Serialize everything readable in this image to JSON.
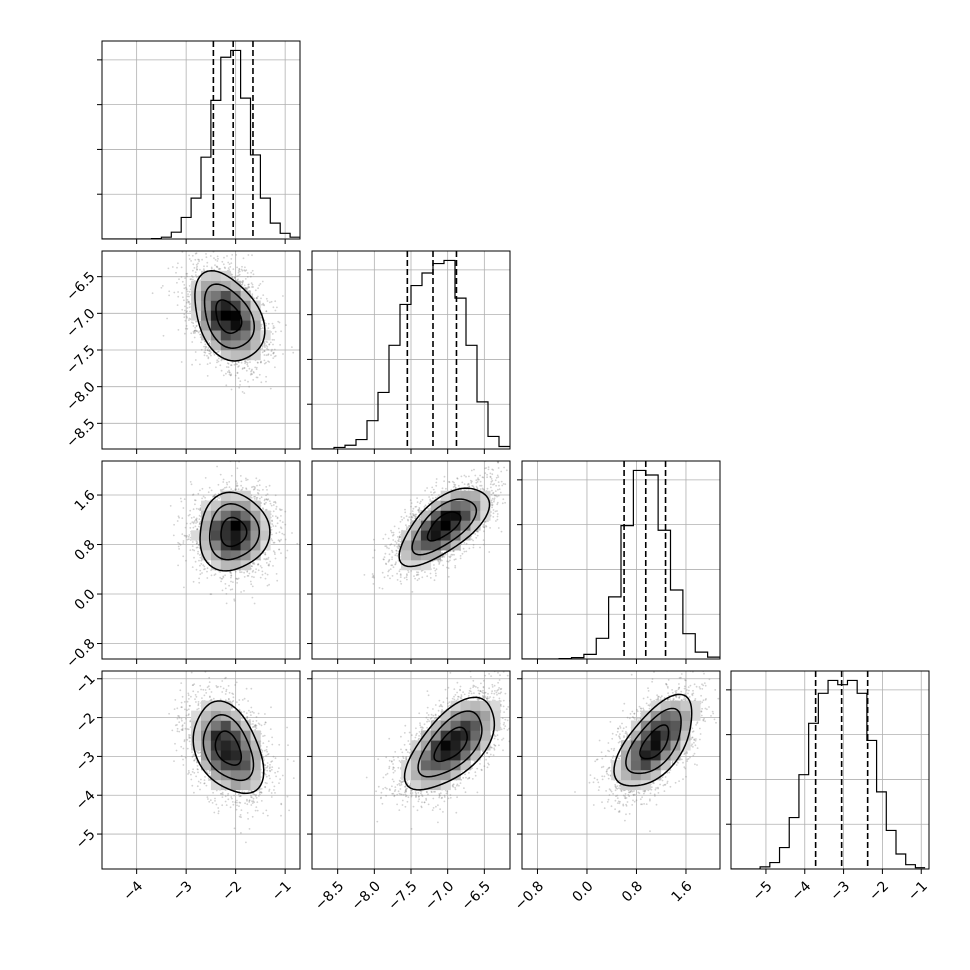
{
  "chart_data": {
    "type": "corner",
    "title": "",
    "n_params": 4,
    "grid": true,
    "colors": {
      "scatter": "#7f7f7f",
      "frame": "#000000",
      "grid": "#b0b0b0"
    },
    "params": [
      {
        "index": 0,
        "range": [
          -4.7,
          -0.7
        ],
        "ticks": [
          -4,
          -3,
          -2,
          -1
        ],
        "tick_labels": [
          "−4",
          "−3",
          "−2",
          "−1"
        ],
        "mean": -2.05,
        "sd": 0.37,
        "quantiles": [
          -2.45,
          -2.05,
          -1.65
        ],
        "hist": {
          "bin_edges": [
            -4.7,
            -4.5,
            -4.3,
            -4.1,
            -3.9,
            -3.7,
            -3.5,
            -3.3,
            -3.1,
            -2.9,
            -2.7,
            -2.5,
            -2.3,
            -2.1,
            -1.9,
            -1.7,
            -1.5,
            -1.3,
            -1.1,
            -0.9,
            -0.7
          ],
          "counts": [
            0,
            0,
            0,
            0,
            0,
            2,
            8,
            30,
            95,
            180,
            360,
            610,
            800,
            830,
            620,
            370,
            180,
            70,
            25,
            8
          ]
        }
      },
      {
        "index": 1,
        "range": [
          -8.85,
          -6.15
        ],
        "ticks": [
          -8.5,
          -8.0,
          -7.5,
          -7.0,
          -6.5
        ],
        "tick_labels": [
          "−8.5",
          "−8.0",
          "−7.5",
          "−7.0",
          "−6.5"
        ],
        "mean": -7.2,
        "sd": 0.32,
        "quantiles": [
          -7.55,
          -7.2,
          -6.88
        ],
        "hist": {
          "bin_edges": [
            -8.85,
            -8.7,
            -8.55,
            -8.4,
            -8.25,
            -8.1,
            -7.95,
            -7.8,
            -7.65,
            -7.5,
            -7.35,
            -7.2,
            -7.05,
            -6.9,
            -6.75,
            -6.6,
            -6.45,
            -6.3,
            -6.15
          ],
          "counts": [
            0,
            0,
            5,
            12,
            30,
            90,
            180,
            330,
            460,
            520,
            560,
            590,
            600,
            480,
            330,
            150,
            40,
            8
          ]
        }
      },
      {
        "index": 2,
        "range": [
          -1.05,
          2.15
        ],
        "ticks": [
          -0.8,
          0.0,
          0.8,
          1.6
        ],
        "tick_labels": [
          "−0.8",
          "0.0",
          "0.8",
          "1.6"
        ],
        "mean": 0.95,
        "sd": 0.33,
        "quantiles": [
          0.6,
          0.95,
          1.27
        ],
        "hist": {
          "bin_edges": [
            -1.05,
            -0.85,
            -0.65,
            -0.45,
            -0.25,
            -0.05,
            0.15,
            0.35,
            0.55,
            0.75,
            0.95,
            1.15,
            1.35,
            1.55,
            1.75,
            1.95,
            2.15
          ],
          "counts": [
            0,
            0,
            0,
            2,
            6,
            20,
            90,
            270,
            580,
            820,
            800,
            560,
            300,
            110,
            30,
            8
          ]
        }
      },
      {
        "index": 3,
        "range": [
          -5.9,
          -0.8
        ],
        "ticks": [
          -5,
          -4,
          -3,
          -2,
          -1
        ],
        "tick_labels": [
          "−5",
          "−4",
          "−3",
          "−2",
          "−1"
        ],
        "mean": -3.05,
        "sd": 0.62,
        "quantiles": [
          -3.72,
          -3.05,
          -2.38
        ],
        "hist": {
          "bin_edges": [
            -5.9,
            -5.65,
            -5.4,
            -5.15,
            -4.9,
            -4.65,
            -4.4,
            -4.15,
            -3.9,
            -3.65,
            -3.4,
            -3.15,
            -2.9,
            -2.65,
            -2.4,
            -2.15,
            -1.9,
            -1.65,
            -1.4,
            -1.15,
            -0.9
          ],
          "counts": [
            0,
            0,
            0,
            5,
            15,
            50,
            120,
            220,
            340,
            410,
            440,
            430,
            440,
            410,
            300,
            180,
            90,
            35,
            10,
            3
          ]
        }
      }
    ],
    "pairs": [
      {
        "x": 0,
        "y": 1,
        "density_peak": [
          -2.15,
          -7.05
        ],
        "correlation": -0.35
      },
      {
        "x": 0,
        "y": 2,
        "density_peak": [
          -2.05,
          1.0
        ],
        "correlation": 0.05
      },
      {
        "x": 1,
        "y": 2,
        "density_peak": [
          -7.05,
          1.1
        ],
        "correlation": 0.65
      },
      {
        "x": 0,
        "y": 3,
        "density_peak": [
          -2.15,
          -2.8
        ],
        "correlation": -0.35
      },
      {
        "x": 1,
        "y": 3,
        "density_peak": [
          -6.95,
          -2.7
        ],
        "correlation": 0.6
      },
      {
        "x": 2,
        "y": 3,
        "density_peak": [
          1.1,
          -2.65
        ],
        "correlation": 0.6
      }
    ]
  }
}
